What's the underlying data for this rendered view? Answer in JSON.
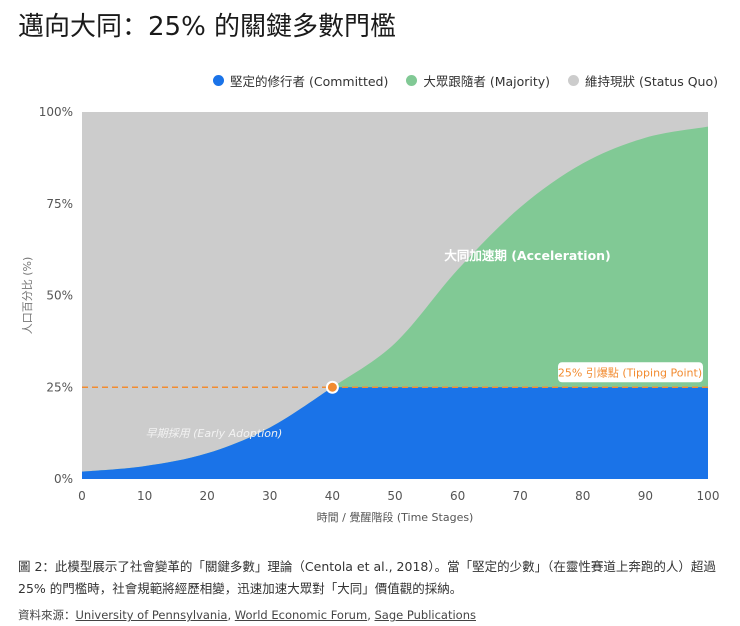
{
  "title": "邁向大同：25% 的關鍵多數門檻",
  "colors": {
    "committed": "#1a73e8",
    "majority": "#81c995",
    "status_quo": "#cccccc",
    "tipping": "#f28b30"
  },
  "chart_data": {
    "type": "area",
    "stacked": true,
    "xlabel": "時間 / 覺醒階段 (Time Stages)",
    "ylabel": "人口百分比 (%)",
    "xlim": [
      0,
      100
    ],
    "ylim": [
      0,
      100
    ],
    "x_ticks": [
      "0",
      "10",
      "20",
      "30",
      "40",
      "50",
      "60",
      "70",
      "80",
      "90",
      "100"
    ],
    "y_ticks": [
      "0%",
      "25%",
      "50%",
      "75%",
      "100%"
    ],
    "legend_position": "top-right",
    "x": [
      0,
      10,
      20,
      30,
      40,
      50,
      60,
      70,
      80,
      90,
      100
    ],
    "series": [
      {
        "name": "堅定的修行者 (Committed)",
        "values": [
          2,
          3.5,
          7,
          14,
          25,
          25,
          25,
          25,
          25,
          25,
          25
        ]
      },
      {
        "name": "大眾跟隨者 (Majority)",
        "values": [
          0,
          0,
          0,
          0,
          0,
          12,
          32,
          49,
          61,
          68,
          71
        ]
      },
      {
        "name": "維持現狀 (Status Quo)",
        "values": [
          98,
          96.5,
          93,
          86,
          75,
          63,
          43,
          26,
          14,
          7,
          4
        ]
      }
    ],
    "threshold": {
      "y": 25,
      "label": "25% 引爆點 (Tipping Point)"
    },
    "tipping_marker": {
      "x": 40,
      "y": 25
    },
    "annotations": [
      {
        "text": "大同加速期 (Acceleration)",
        "x": 60,
        "y": 60
      },
      {
        "text": "早期採用 (Early Adoption)",
        "x": 10,
        "y": 12
      }
    ]
  },
  "caption": "圖 2：此模型展示了社會變革的「關鍵多數」理論（Centola et al., 2018）。當「堅定的少數」（在靈性賽道上奔跑的人）超過 25% 的門檻時，社會規範將經歷相變，迅速加速大眾對「大同」價值觀的採納。",
  "source": {
    "label": "資料來源：",
    "links": [
      "University of Pennsylvania",
      "World Economic Forum",
      "Sage Publications"
    ]
  }
}
